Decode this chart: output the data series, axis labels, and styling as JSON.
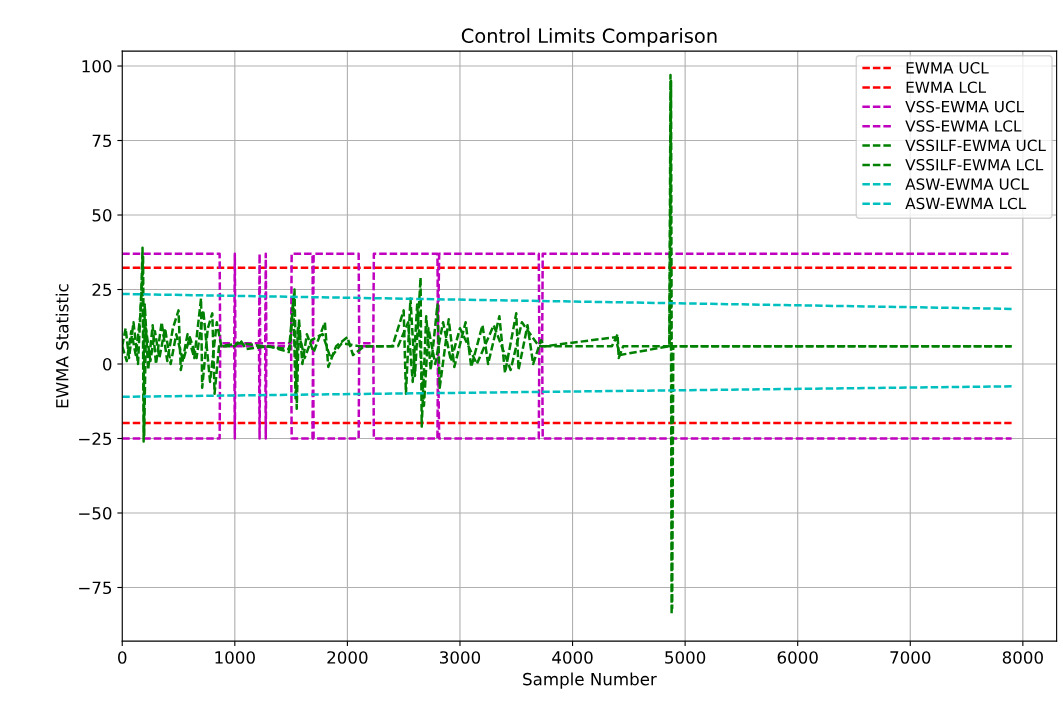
{
  "chart_data": {
    "type": "line",
    "title": "Control Limits Comparison",
    "xlabel": "Sample Number",
    "ylabel": "EWMA Statistic",
    "xlim": [
      0,
      8300
    ],
    "xticks": [
      0,
      1000,
      2000,
      3000,
      4000,
      5000,
      6000,
      7000,
      8000
    ],
    "ylim": [
      -93,
      105
    ],
    "yticks": [
      {
        "value": -75,
        "label": "−75"
      },
      {
        "value": -50,
        "label": "−50"
      },
      {
        "value": -25,
        "label": "−25"
      },
      0,
      25,
      50,
      75,
      100
    ],
    "grid": true,
    "legend": "top right",
    "marker": "none",
    "line_style": "dashed",
    "series": [
      {
        "name": "EWMA UCL",
        "color": "#ff0000",
        "x": [
          0,
          7900
        ],
        "values": [
          32.3,
          32.3
        ]
      },
      {
        "name": "EWMA LCL",
        "color": "#ff0000",
        "x": [
          0,
          7900
        ],
        "values": [
          -19.8,
          -19.8
        ]
      },
      {
        "name": "VSS-EWMA UCL",
        "color": "#bf00bf",
        "x": [
          0,
          865,
          870,
          995,
          1000,
          1005,
          1215,
          1220,
          1225,
          1270,
          1275,
          1280,
          1500,
          1505,
          1690,
          1695,
          1700,
          2100,
          2105,
          2230,
          2235,
          2800,
          2805,
          2815,
          3700,
          3705,
          3730,
          3735,
          7900
        ],
        "values": [
          37,
          37,
          7,
          7,
          37,
          7,
          7,
          37,
          7,
          7,
          37,
          7,
          7,
          37,
          37,
          7,
          37,
          37,
          7,
          7,
          37,
          37,
          7,
          37,
          37,
          7,
          7,
          37,
          37
        ]
      },
      {
        "name": "VSS-EWMA LCL",
        "color": "#bf00bf",
        "x": [
          0,
          865,
          870,
          995,
          1000,
          1005,
          1215,
          1220,
          1225,
          1270,
          1275,
          1280,
          1500,
          1505,
          1690,
          1695,
          1700,
          2100,
          2105,
          2230,
          2235,
          2800,
          2805,
          2815,
          3700,
          3705,
          3730,
          3735,
          7900
        ],
        "values": [
          -25,
          -25,
          6,
          6,
          -25,
          6,
          6,
          -25,
          6,
          6,
          -25,
          6,
          6,
          -25,
          -25,
          6,
          -25,
          -25,
          6,
          6,
          -25,
          -25,
          6,
          -25,
          -25,
          6,
          6,
          -25,
          -25
        ]
      },
      {
        "name": "VSSILF-EWMA UCL",
        "color": "#008000",
        "x": [
          0,
          30,
          60,
          100,
          140,
          170,
          180,
          190,
          200,
          230,
          270,
          300,
          350,
          400,
          450,
          500,
          520,
          580,
          640,
          700,
          710,
          760,
          800,
          820,
          860,
          1000,
          1050,
          1100,
          1300,
          1480,
          1510,
          1530,
          1550,
          1570,
          1600,
          1640,
          1700,
          1800,
          1830,
          1900,
          2000,
          2050,
          2150,
          2400,
          2500,
          2520,
          2560,
          2600,
          2650,
          2660,
          2700,
          2740,
          2800,
          2820,
          2900,
          2950,
          3050,
          3100,
          3200,
          3250,
          3350,
          3400,
          3500,
          3520,
          3600,
          3650,
          3720,
          3750,
          4350,
          4400,
          4410,
          4450,
          4860,
          4870,
          4880,
          4890,
          7900
        ],
        "values": [
          6,
          12,
          2,
          14,
          0,
          24,
          39,
          -26,
          20,
          -2,
          13,
          0,
          14,
          1,
          12,
          18,
          -2,
          10,
          2,
          22,
          -8,
          12,
          17,
          -10,
          6,
          6,
          8,
          5,
          6,
          4,
          17,
          25,
          -15,
          15,
          0,
          10,
          4,
          14,
          -1,
          6,
          9,
          3,
          6,
          6,
          18,
          -10,
          22,
          -4,
          29,
          -21,
          16,
          -2,
          20,
          -8,
          15,
          -1,
          14,
          -1,
          13,
          0,
          16,
          -3,
          17,
          -2,
          13,
          0,
          8,
          6,
          6,
          10,
          2,
          6,
          6,
          97,
          -84,
          6,
          6
        ]
      },
      {
        "name": "VSSILF-EWMA LCL",
        "color": "#008000",
        "x": [
          0,
          40,
          80,
          120,
          160,
          185,
          195,
          210,
          250,
          290,
          330,
          380,
          430,
          480,
          540,
          600,
          660,
          720,
          780,
          840,
          880,
          1050,
          1250,
          1490,
          1520,
          1540,
          1560,
          1620,
          1680,
          1780,
          1850,
          1950,
          2100,
          2450,
          2540,
          2580,
          2620,
          2680,
          2720,
          2780,
          2850,
          2920,
          3000,
          3150,
          3300,
          3450,
          3550,
          3700,
          3760,
          4380,
          4420,
          4860,
          4875,
          4885,
          4895,
          7900
        ],
        "values": [
          6,
          1,
          11,
          3,
          16,
          36,
          -24,
          12,
          1,
          11,
          2,
          12,
          0,
          10,
          1,
          9,
          2,
          18,
          -6,
          14,
          6,
          7,
          6,
          5,
          22,
          -12,
          12,
          2,
          8,
          10,
          2,
          7,
          6,
          6,
          14,
          -6,
          20,
          -14,
          12,
          0,
          14,
          1,
          12,
          0,
          13,
          -2,
          14,
          6,
          6,
          9,
          3,
          6,
          95,
          -82,
          6,
          6
        ]
      },
      {
        "name": "ASW-EWMA UCL",
        "color": "#00bfbf",
        "x": [
          0,
          7900
        ],
        "values": [
          23.5,
          18.5
        ]
      },
      {
        "name": "ASW-EWMA LCL",
        "color": "#00bfbf",
        "x": [
          0,
          7900
        ],
        "values": [
          -11,
          -7.5
        ]
      }
    ]
  }
}
